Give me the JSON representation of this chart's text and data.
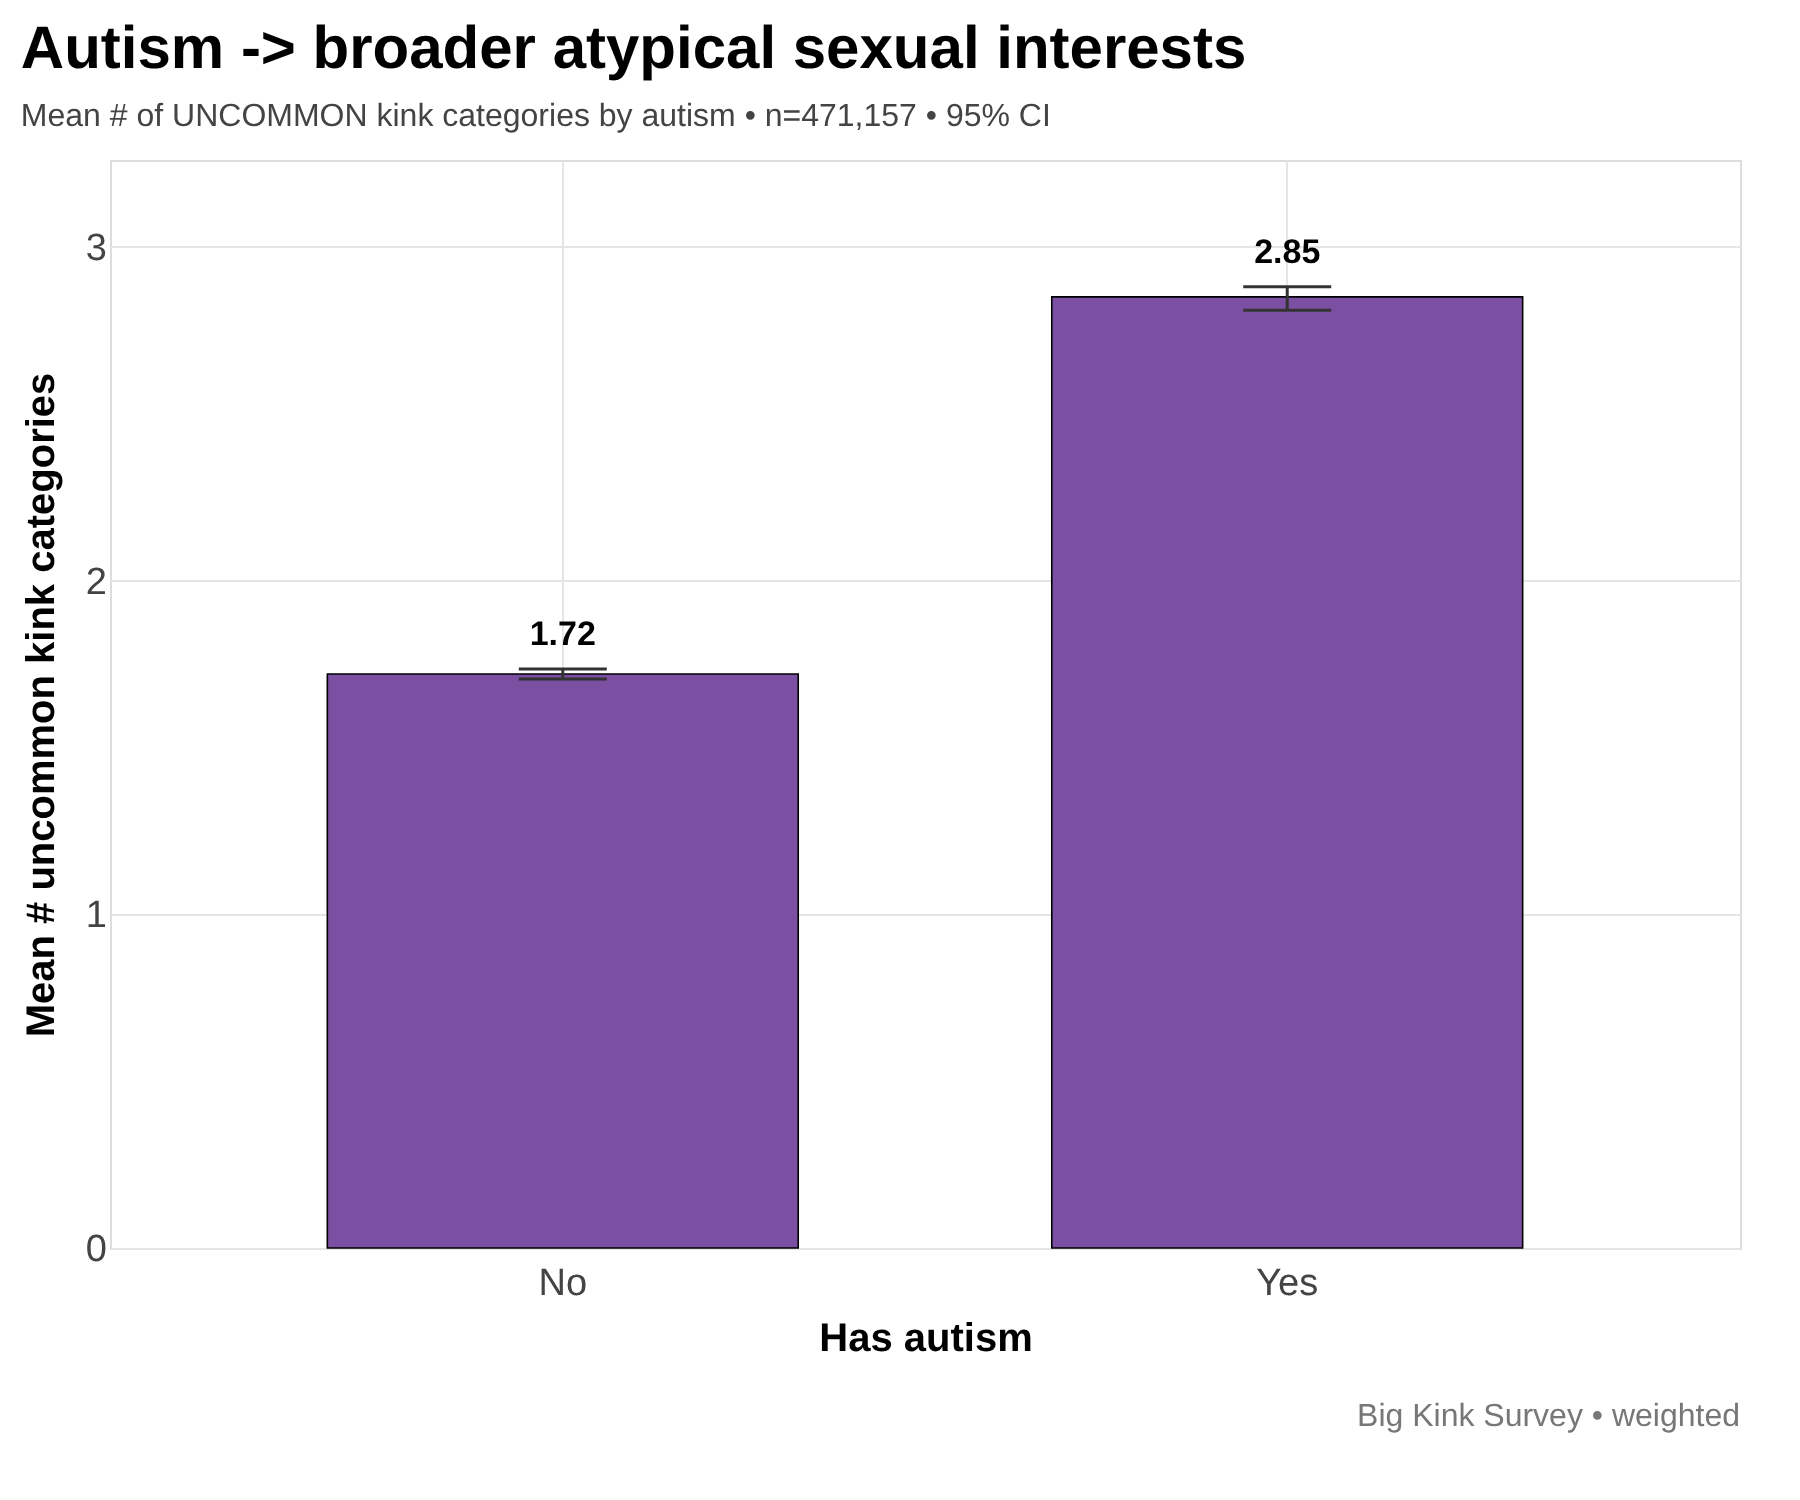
{
  "chart_data": {
    "type": "bar",
    "title": "Autism -> broader atypical sexual interests",
    "subtitle": "Mean # of UNCOMMON kink categories by autism  •  n=471,157  •  95% CI",
    "xlabel": "Has autism",
    "ylabel": "Mean # uncommon kink categories",
    "categories": [
      "No",
      "Yes"
    ],
    "values": [
      1.72,
      2.85
    ],
    "errors": [
      0.015,
      [
        2.81,
        2.88
      ]
    ],
    "color": "#7b4fa1",
    "data_labels": true,
    "ylim": [
      0,
      3.26
    ],
    "yticks": [
      0,
      1,
      2,
      3
    ],
    "grid": true,
    "annotations": [
      "Big Kink Survey  •  weighted"
    ]
  }
}
